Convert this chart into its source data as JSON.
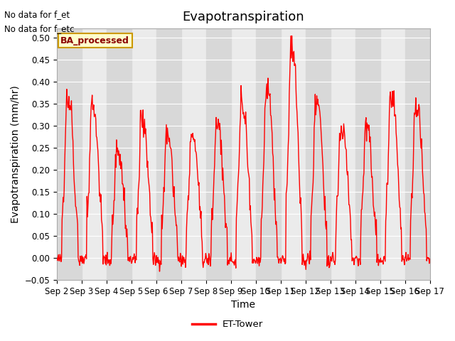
{
  "title": "Evapotranspiration",
  "xlabel": "Time",
  "ylabel": "Evapotranspiration (mm/hr)",
  "ylim": [
    -0.05,
    0.52
  ],
  "yticks": [
    -0.05,
    0.0,
    0.05,
    0.1,
    0.15,
    0.2,
    0.25,
    0.3,
    0.35,
    0.4,
    0.45,
    0.5
  ],
  "line_color": "#FF0000",
  "line_width": 1.0,
  "background_color": "#ffffff",
  "plot_bg_color": "#ebebeb",
  "band_color": "#d8d8d8",
  "annotation_text1": "No data for f_et",
  "annotation_text2": "No data for f_etc",
  "legend_label": "BA_processed",
  "legend_label2": "ET-Tower",
  "x_tick_labels": [
    "Sep 2",
    "Sep 3",
    "Sep 4",
    "Sep 5",
    "Sep 6",
    "Sep 7",
    "Sep 8",
    "Sep 9",
    "Sep 10",
    "Sep 11",
    "Sep 12",
    "Sep 13",
    "Sep 14",
    "Sep 15",
    "Sep 16",
    "Sep 17"
  ],
  "title_fontsize": 13,
  "axis_fontsize": 10,
  "tick_fontsize": 8.5
}
